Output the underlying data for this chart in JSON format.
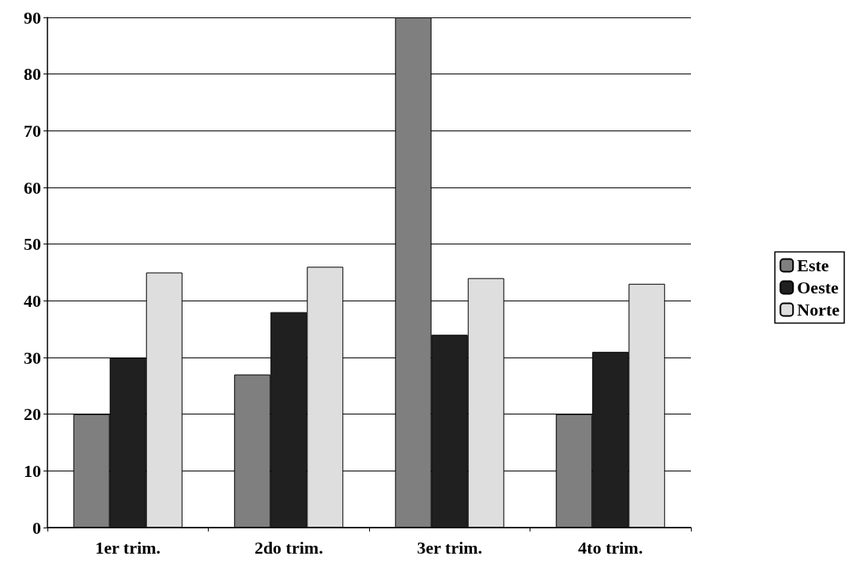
{
  "chart_data": {
    "type": "bar",
    "categories": [
      "1er trim.",
      "2do trim.",
      "3er trim.",
      "4to trim."
    ],
    "series": [
      {
        "name": "Este",
        "color": "#7f7f7f",
        "values": [
          20,
          27,
          90,
          20
        ]
      },
      {
        "name": "Oeste",
        "color": "#202020",
        "values": [
          30,
          38,
          34,
          31
        ]
      },
      {
        "name": "Norte",
        "color": "#dedede",
        "values": [
          45,
          46,
          44,
          43
        ]
      }
    ],
    "ylim": [
      0,
      90
    ],
    "yticks": [
      0,
      10,
      20,
      30,
      40,
      50,
      60,
      70,
      80,
      90
    ],
    "grid": "y",
    "legend": "right"
  }
}
